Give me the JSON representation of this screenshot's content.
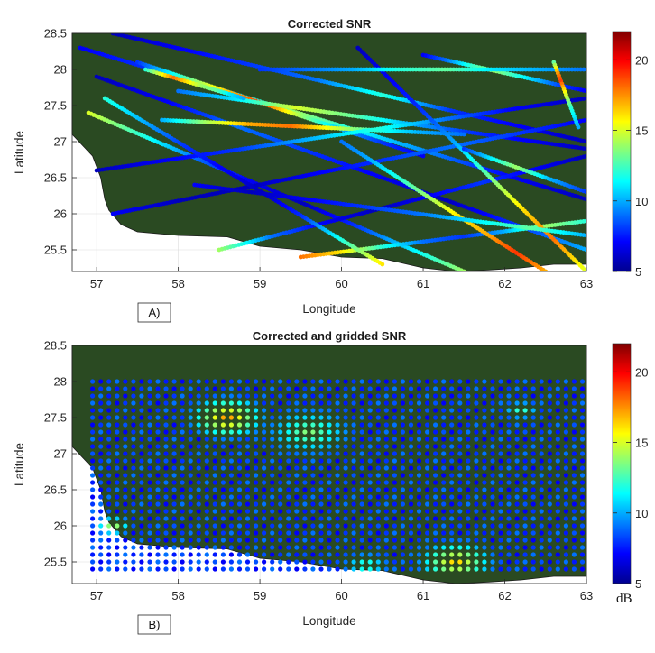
{
  "chart_data": [
    {
      "type": "scatter",
      "panel_label": "A)",
      "title": "Corrected SNR",
      "xlabel": "Longitude",
      "ylabel": "Latitude",
      "xlim": [
        56.7,
        63
      ],
      "ylim": [
        25.2,
        28.5
      ],
      "xticks": [
        "57",
        "58",
        "59",
        "60",
        "61",
        "62",
        "63"
      ],
      "yticks": [
        "25.5",
        "26",
        "26.5",
        "27",
        "27.5",
        "28",
        "28.5"
      ],
      "colorbar": {
        "min": 5,
        "max": 22,
        "ticks": [
          "5",
          "10",
          "15",
          "20"
        ],
        "colormap": "jet"
      },
      "background_color": "#2a4a22",
      "grid": true,
      "description_of_series": "along-track SNR samples (ship tracks)",
      "tracks": [
        {
          "from": [
            57.2,
            28.5
          ],
          "to": [
            63.0,
            27.0
          ],
          "snr": [
            6,
            7,
            8,
            9,
            12,
            8,
            7,
            6
          ]
        },
        {
          "from": [
            56.8,
            28.3
          ],
          "to": [
            63.0,
            26.2
          ],
          "snr": [
            7,
            8,
            10,
            14,
            11,
            9,
            7,
            6
          ]
        },
        {
          "from": [
            57.0,
            27.9
          ],
          "to": [
            63.0,
            25.5
          ],
          "snr": [
            6,
            7,
            9,
            8,
            7,
            6,
            8,
            10
          ]
        },
        {
          "from": [
            56.9,
            27.4
          ],
          "to": [
            61.5,
            25.2
          ],
          "snr": [
            15,
            12,
            9,
            7,
            6,
            8,
            11,
            14
          ]
        },
        {
          "from": [
            57.5,
            28.1
          ],
          "to": [
            61.0,
            26.8
          ],
          "snr": [
            8,
            12,
            16,
            19,
            14,
            10,
            8,
            7
          ]
        },
        {
          "from": [
            58.0,
            27.7
          ],
          "to": [
            63.0,
            26.9
          ],
          "snr": [
            9,
            11,
            15,
            13,
            10,
            8,
            7,
            6
          ]
        },
        {
          "from": [
            57.8,
            27.3
          ],
          "to": [
            61.5,
            27.1
          ],
          "snr": [
            10,
            14,
            17,
            18,
            15,
            12,
            10,
            9
          ]
        },
        {
          "from": [
            57.0,
            26.6
          ],
          "to": [
            63.0,
            27.6
          ],
          "snr": [
            6,
            7,
            8,
            10,
            12,
            9,
            7,
            6
          ]
        },
        {
          "from": [
            57.2,
            26.0
          ],
          "to": [
            63.0,
            27.3
          ],
          "snr": [
            7,
            6,
            6,
            7,
            8,
            9,
            8,
            7
          ]
        },
        {
          "from": [
            58.5,
            25.5
          ],
          "to": [
            63.0,
            26.8
          ],
          "snr": [
            14,
            9,
            7,
            6,
            7,
            8,
            7,
            6
          ]
        },
        {
          "from": [
            59.5,
            25.4
          ],
          "to": [
            63.0,
            25.9
          ],
          "snr": [
            18,
            16,
            12,
            9,
            8,
            10,
            14,
            12
          ]
        },
        {
          "from": [
            60.2,
            28.3
          ],
          "to": [
            63.0,
            25.2
          ],
          "snr": [
            6,
            7,
            8,
            10,
            13,
            16,
            18,
            15
          ]
        },
        {
          "from": [
            61.0,
            28.2
          ],
          "to": [
            63.0,
            27.7
          ],
          "snr": [
            7,
            9,
            12,
            14,
            12,
            10,
            8,
            7
          ]
        },
        {
          "from": [
            59.0,
            28.0
          ],
          "to": [
            63.0,
            28.0
          ],
          "snr": [
            8,
            9,
            10,
            12,
            13,
            11,
            10,
            9
          ]
        },
        {
          "from": [
            57.1,
            27.6
          ],
          "to": [
            60.5,
            25.3
          ],
          "snr": [
            12,
            10,
            8,
            7,
            6,
            8,
            12,
            16
          ]
        },
        {
          "from": [
            60.0,
            27.0
          ],
          "to": [
            62.5,
            25.2
          ],
          "snr": [
            9,
            10,
            12,
            14,
            16,
            17,
            19,
            17
          ]
        },
        {
          "from": [
            58.2,
            26.4
          ],
          "to": [
            63.0,
            25.7
          ],
          "snr": [
            7,
            6,
            7,
            8,
            9,
            11,
            13,
            10
          ]
        },
        {
          "from": [
            61.5,
            26.9
          ],
          "to": [
            63.0,
            26.3
          ],
          "snr": [
            8,
            10,
            12,
            14,
            12,
            10,
            9,
            8
          ]
        },
        {
          "from": [
            57.6,
            28.0
          ],
          "to": [
            58.8,
            27.6
          ],
          "snr": [
            12,
            15,
            18,
            16,
            14,
            13,
            11,
            10
          ]
        },
        {
          "from": [
            62.6,
            28.1
          ],
          "to": [
            62.9,
            27.2
          ],
          "snr": [
            13,
            17,
            19,
            16,
            14,
            12,
            11,
            10
          ]
        }
      ]
    },
    {
      "type": "scatter",
      "panel_label": "B)",
      "title": "Corrected and gridded SNR",
      "xlabel": "Longitude",
      "ylabel": "Latitude",
      "xlim": [
        56.7,
        63
      ],
      "ylim": [
        25.2,
        28.5
      ],
      "xticks": [
        "57",
        "58",
        "59",
        "60",
        "61",
        "62",
        "63"
      ],
      "yticks": [
        "25.5",
        "26",
        "26.5",
        "27",
        "27.5",
        "28",
        "28.5"
      ],
      "colorbar": {
        "min": 5,
        "max": 22,
        "ticks": [
          "5",
          "10",
          "15",
          "20"
        ],
        "colormap": "jet",
        "unit": "dB"
      },
      "background_color": "#2a4a22",
      "grid": true,
      "grid_cells": {
        "lon_start": 56.95,
        "lon_step": 0.1,
        "lon_count": 61,
        "lat_start": 25.4,
        "lat_step": 0.1,
        "lat_count": 27,
        "base_snr": 7,
        "hotspots": [
          {
            "lon": 58.6,
            "lat": 27.5,
            "radius": 0.6,
            "peak": 18
          },
          {
            "lon": 59.6,
            "lat": 27.3,
            "radius": 0.7,
            "peak": 14
          },
          {
            "lon": 61.4,
            "lat": 25.5,
            "radius": 0.6,
            "peak": 17
          },
          {
            "lon": 60.3,
            "lat": 25.45,
            "radius": 0.4,
            "peak": 13
          },
          {
            "lon": 57.2,
            "lat": 26.0,
            "radius": 0.3,
            "peak": 15
          },
          {
            "lon": 62.2,
            "lat": 27.6,
            "radius": 0.3,
            "peak": 13
          }
        ]
      }
    }
  ],
  "unit_label": "dB"
}
